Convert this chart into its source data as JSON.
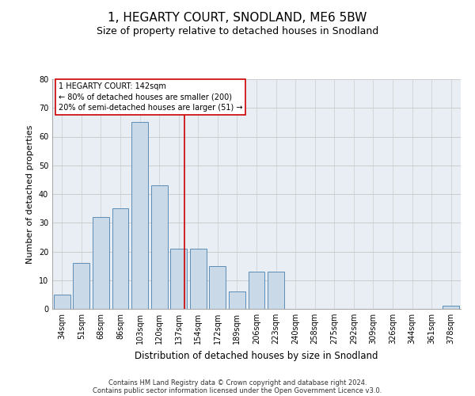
{
  "title": "1, HEGARTY COURT, SNODLAND, ME6 5BW",
  "subtitle": "Size of property relative to detached houses in Snodland",
  "xlabel": "Distribution of detached houses by size in Snodland",
  "ylabel": "Number of detached properties",
  "categories": [
    "34sqm",
    "51sqm",
    "68sqm",
    "86sqm",
    "103sqm",
    "120sqm",
    "137sqm",
    "154sqm",
    "172sqm",
    "189sqm",
    "206sqm",
    "223sqm",
    "240sqm",
    "258sqm",
    "275sqm",
    "292sqm",
    "309sqm",
    "326sqm",
    "344sqm",
    "361sqm",
    "378sqm"
  ],
  "values": [
    5,
    16,
    32,
    35,
    65,
    43,
    21,
    21,
    15,
    6,
    13,
    13,
    0,
    0,
    0,
    0,
    0,
    0,
    0,
    0,
    1
  ],
  "bar_color": "#c9d9e8",
  "bar_edge_color": "#5b8db8",
  "vline_color": "#cc0000",
  "annotation_text": "1 HEGARTY COURT: 142sqm\n← 80% of detached houses are smaller (200)\n20% of semi-detached houses are larger (51) →",
  "annotation_box_color": "#cc0000",
  "ylim": [
    0,
    80
  ],
  "yticks": [
    0,
    10,
    20,
    30,
    40,
    50,
    60,
    70,
    80
  ],
  "grid_color": "#cccccc",
  "background_color": "#e8eef4",
  "footer_line1": "Contains HM Land Registry data © Crown copyright and database right 2024.",
  "footer_line2": "Contains public sector information licensed under the Open Government Licence v3.0.",
  "title_fontsize": 11,
  "subtitle_fontsize": 9,
  "xlabel_fontsize": 8.5,
  "ylabel_fontsize": 8,
  "tick_fontsize": 7,
  "annotation_fontsize": 7,
  "footer_fontsize": 6
}
